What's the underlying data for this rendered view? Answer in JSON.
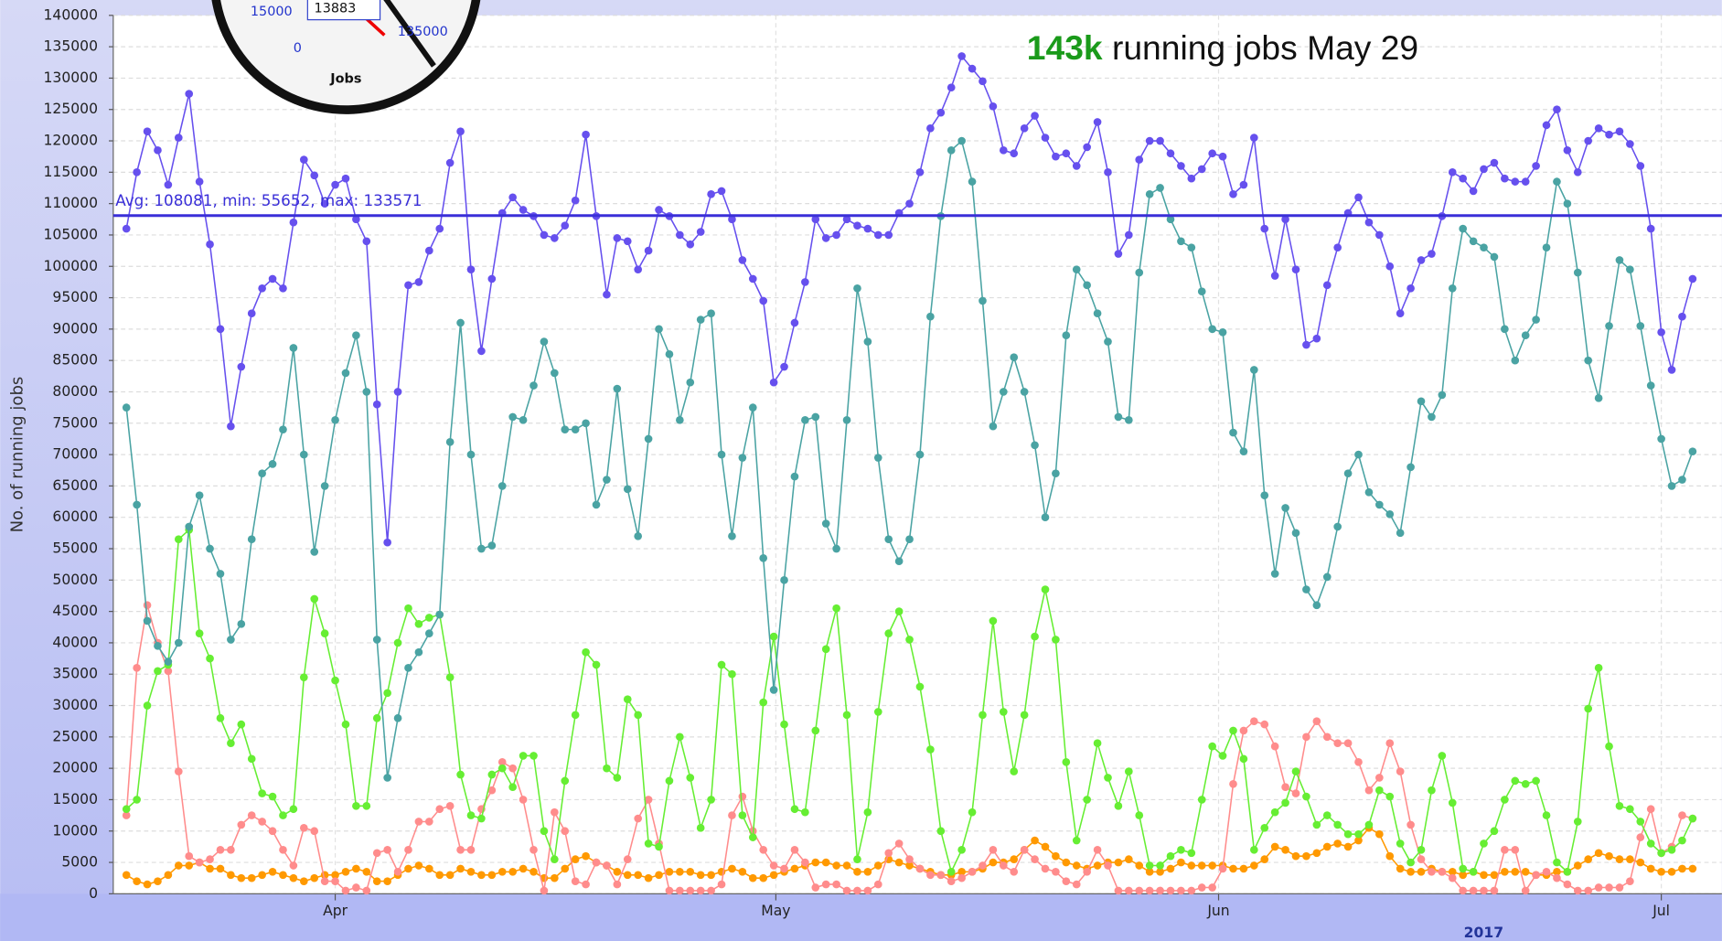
{
  "chart_data": {
    "type": "line",
    "y_label": "No. of running jobs",
    "annotation": {
      "highlight": "143k",
      "text": "running jobs May 29",
      "color": "#1a9a1a"
    },
    "avg": 108081,
    "avg_label": "Avg: 108081, min: 55652, max: 133571",
    "avg_color": "#3a2fd8",
    "year_label": "2017",
    "gauge": {
      "title": "Jobs",
      "value_label": "13883",
      "tick_labels": [
        "15000",
        "0",
        "135000"
      ]
    },
    "x": [
      0,
      1,
      2,
      3,
      4,
      5,
      6,
      7,
      8,
      9,
      10,
      11,
      12,
      13,
      14,
      15,
      16,
      17,
      18,
      19,
      20,
      21,
      22,
      23,
      24,
      25,
      26,
      27,
      28,
      29,
      30,
      31,
      32,
      33,
      34,
      35,
      36,
      37,
      38,
      39,
      40,
      41,
      42,
      43,
      44,
      45,
      46,
      47,
      48,
      49,
      50,
      51,
      52,
      53,
      54,
      55,
      56,
      57,
      58,
      59,
      60,
      61,
      62,
      63,
      64,
      65,
      66,
      67,
      68,
      69,
      70,
      71,
      72,
      73,
      74,
      75,
      76,
      77,
      78,
      79,
      80,
      81,
      82,
      83,
      84,
      85,
      86,
      87,
      88,
      89,
      90,
      91,
      92,
      93,
      94,
      95,
      96,
      97,
      98,
      99,
      100,
      101,
      102,
      103,
      104,
      105,
      106,
      107,
      108,
      109,
      110,
      111,
      112,
      113,
      114,
      115,
      116,
      117,
      118,
      119,
      120,
      121,
      122,
      123,
      124,
      125,
      126,
      127,
      128,
      129,
      130,
      131,
      132,
      133,
      134,
      135,
      136,
      137,
      138,
      139,
      140,
      141,
      142,
      143,
      144,
      145,
      146,
      147,
      148,
      149,
      150
    ],
    "xlim": [
      -1.26,
      152.8
    ],
    "xticks": [
      {
        "value": 20,
        "label": "Apr"
      },
      {
        "value": 62.2,
        "label": "May"
      },
      {
        "value": 104.6,
        "label": "Jun"
      },
      {
        "value": 147,
        "label": "Jul"
      }
    ],
    "ylim": [
      0,
      140000
    ],
    "yticks": [
      0,
      5000,
      10000,
      15000,
      20000,
      25000,
      30000,
      35000,
      40000,
      45000,
      50000,
      55000,
      60000,
      65000,
      70000,
      75000,
      80000,
      85000,
      90000,
      95000,
      100000,
      105000,
      110000,
      115000,
      120000,
      125000,
      130000,
      135000,
      140000
    ],
    "grid": true,
    "series": [
      {
        "color": "#6650ee",
        "values": [
          106000,
          115000,
          121500,
          118500,
          113000,
          120500,
          127500,
          113500,
          103500,
          90000,
          74500,
          84000,
          92500,
          96500,
          98000,
          96500,
          107000,
          117000,
          114500,
          110000,
          113000,
          114000,
          107500,
          104000,
          78000,
          56000,
          80000,
          97000,
          97500,
          102500,
          106000,
          116500,
          121500,
          99500,
          86500,
          98000,
          108500,
          111000,
          109000,
          108000,
          105000,
          104500,
          106500,
          110500,
          121000,
          108000,
          95500,
          104500,
          104000,
          99500,
          102500,
          109000,
          108000,
          105000,
          103500,
          105500,
          111500,
          112000,
          107500,
          101000,
          98000,
          94500,
          81500,
          84000,
          91000,
          97500,
          107500,
          104500,
          105000,
          107500,
          106500,
          106000,
          105000,
          105000,
          108500,
          110000,
          115000,
          122000,
          124500,
          128500,
          133500,
          131500,
          129500,
          125500,
          118500,
          118000,
          122000,
          124000,
          120500,
          117500,
          118000,
          116000,
          119000,
          123000,
          115000,
          102000,
          105000,
          117000,
          120000,
          120000,
          118000,
          116000,
          114000,
          115500,
          118000,
          117500,
          111500,
          113000,
          120500,
          106000,
          98500,
          107500,
          99500,
          87500,
          88500,
          97000,
          103000,
          108500,
          111000,
          107000,
          105000,
          100000,
          92500,
          96500,
          101000,
          102000,
          108000,
          115000,
          114000,
          112000,
          115500,
          116500,
          114000,
          113500,
          113500,
          116000,
          122500,
          125000,
          118500,
          115000,
          120000,
          122000,
          121000,
          121500,
          119500,
          116000,
          106000,
          89500,
          83500,
          92000,
          98000
        ]
      },
      {
        "color": "#4aa3a3",
        "values": [
          77500,
          62000,
          43500,
          39500,
          37000,
          40000,
          58500,
          63500,
          55000,
          51000,
          40500,
          43000,
          56500,
          67000,
          68500,
          74000,
          87000,
          70000,
          54500,
          65000,
          75500,
          83000,
          89000,
          80000,
          40500,
          18500,
          28000,
          36000,
          38500,
          41500,
          44500,
          72000,
          91000,
          70000,
          55000,
          55500,
          65000,
          76000,
          75500,
          81000,
          88000,
          83000,
          74000,
          74000,
          75000,
          62000,
          66000,
          80500,
          64500,
          57000,
          72500,
          90000,
          86000,
          75500,
          81500,
          91500,
          92500,
          70000,
          57000,
          69500,
          77500,
          53500,
          32500,
          50000,
          66500,
          75500,
          76000,
          59000,
          55000,
          75500,
          96500,
          88000,
          69500,
          56500,
          53000,
          56500,
          70000,
          92000,
          108000,
          118500,
          120000,
          113500,
          94500,
          74500,
          80000,
          85500,
          80000,
          71500,
          60000,
          67000,
          89000,
          99500,
          97000,
          92500,
          88000,
          76000,
          75500,
          99000,
          111500,
          112500,
          107500,
          104000,
          103000,
          96000,
          90000,
          89500,
          73500,
          70500,
          83500,
          63500,
          51000,
          61500,
          57500,
          48500,
          46000,
          50500,
          58500,
          67000,
          70000,
          64000,
          62000,
          60500,
          57500,
          68000,
          78500,
          76000,
          79500,
          96500,
          106000,
          104000,
          103000,
          101500,
          90000,
          85000,
          89000,
          91500,
          103000,
          113500,
          110000,
          99000,
          85000,
          79000,
          90500,
          101000,
          99500,
          90500,
          81000,
          72500,
          65000,
          66000,
          70500
        ]
      },
      {
        "color": "#66ee33",
        "values": [
          13500,
          15000,
          30000,
          35500,
          36500,
          56500,
          58000,
          41500,
          37500,
          28000,
          24000,
          27000,
          21500,
          16000,
          15500,
          12500,
          13500,
          34500,
          47000,
          41500,
          34000,
          27000,
          14000,
          14000,
          28000,
          32000,
          40000,
          45500,
          43000,
          44000,
          44500,
          34500,
          19000,
          12500,
          12000,
          19000,
          20000,
          17000,
          22000,
          22000,
          10000,
          5500,
          18000,
          28500,
          38500,
          36500,
          20000,
          18500,
          31000,
          28500,
          8000,
          7500,
          18000,
          25000,
          18500,
          10500,
          15000,
          36500,
          35000,
          12500,
          9000,
          30500,
          41000,
          27000,
          13500,
          13000,
          26000,
          39000,
          45500,
          28500,
          5500,
          13000,
          29000,
          41500,
          45000,
          40500,
          33000,
          23000,
          10000,
          3500,
          7000,
          13000,
          28500,
          43500,
          29000,
          19500,
          28500,
          41000,
          48500,
          40500,
          21000,
          8500,
          15000,
          24000,
          18500,
          14000,
          19500,
          12500,
          4500,
          4500,
          6000,
          7000,
          6500,
          15000,
          23500,
          22000,
          26000,
          21500,
          7000,
          10500,
          13000,
          14500,
          19500,
          15500,
          11000,
          12500,
          11000,
          9500,
          9500,
          11000,
          16500,
          15500,
          8000,
          5000,
          7000,
          16500,
          22000,
          14500,
          4000,
          3500,
          8000,
          10000,
          15000,
          18000,
          17500,
          18000,
          12500,
          5000,
          3500,
          11500,
          29500,
          36000,
          23500,
          14000,
          13500,
          11500,
          8000,
          6500,
          7000,
          8500,
          12000
        ]
      },
      {
        "color": "#ff8c8c",
        "values": [
          12500,
          36000,
          46000,
          40000,
          35500,
          19500,
          6000,
          5000,
          5500,
          7000,
          7000,
          11000,
          12500,
          11500,
          10000,
          7000,
          4500,
          10500,
          10000,
          2000,
          2000,
          500,
          1000,
          500,
          6500,
          7000,
          3500,
          7000,
          11500,
          11500,
          13500,
          14000,
          7000,
          7000,
          13500,
          16500,
          21000,
          20000,
          15000,
          7000,
          500,
          13000,
          10000,
          2000,
          1500,
          5000,
          4500,
          1500,
          5500,
          12000,
          15000,
          8000,
          500,
          500,
          500,
          500,
          500,
          1500,
          12500,
          15500,
          10000,
          7000,
          4500,
          4000,
          7000,
          5000,
          1000,
          1500,
          1500,
          500,
          500,
          500,
          1500,
          6500,
          8000,
          5500,
          4000,
          3000,
          3000,
          2000,
          2500,
          3500,
          4500,
          7000,
          4500,
          3500,
          7000,
          5500,
          4000,
          3500,
          2000,
          1500,
          3500,
          7000,
          4500,
          500,
          500,
          500,
          500,
          500,
          500,
          500,
          500,
          1000,
          1000,
          4000,
          17500,
          26000,
          27500,
          27000,
          23500,
          17000,
          16000,
          25000,
          27500,
          25000,
          24000,
          24000,
          21000,
          16500,
          18500,
          24000,
          19500,
          11000,
          5500,
          3500,
          3500,
          2500,
          500,
          500,
          500,
          500,
          7000,
          7000,
          500,
          3000,
          3500,
          2500,
          1500,
          500,
          500,
          1000,
          1000,
          1000,
          2000,
          9000,
          13500,
          6500,
          7500,
          12500,
          12000
        ]
      },
      {
        "color": "#ff9900",
        "values": [
          3000,
          2000,
          1500,
          2000,
          3000,
          4500,
          4500,
          5000,
          4000,
          4000,
          3000,
          2500,
          2500,
          3000,
          3500,
          3000,
          2500,
          2000,
          2500,
          3000,
          3000,
          3500,
          4000,
          3500,
          2000,
          2000,
          3000,
          4000,
          4500,
          4000,
          3000,
          3000,
          4000,
          3500,
          3000,
          3000,
          3500,
          3500,
          4000,
          3500,
          2500,
          2500,
          4000,
          5500,
          6000,
          5000,
          4500,
          3500,
          3000,
          3000,
          2500,
          3000,
          3500,
          3500,
          3500,
          3000,
          3000,
          3500,
          4000,
          3500,
          2500,
          2500,
          3000,
          3500,
          4000,
          4500,
          5000,
          5000,
          4500,
          4500,
          3500,
          3500,
          4500,
          5500,
          5000,
          4500,
          4000,
          3500,
          3000,
          3000,
          3500,
          3500,
          4000,
          5000,
          5000,
          5500,
          7000,
          8500,
          7500,
          6000,
          5000,
          4500,
          4000,
          4500,
          5000,
          5000,
          5500,
          4500,
          3500,
          3500,
          4000,
          5000,
          4500,
          4500,
          4500,
          4500,
          4000,
          4000,
          4500,
          5500,
          7500,
          7000,
          6000,
          6000,
          6500,
          7500,
          8000,
          7500,
          8500,
          10500,
          9500,
          6000,
          4000,
          3500,
          3500,
          4000,
          3500,
          3500,
          3000,
          3500,
          3000,
          3000,
          3500,
          3500,
          3500,
          3000,
          3000,
          3500,
          3500,
          4500,
          5500,
          6500,
          6000,
          5500,
          5500,
          5000,
          4000,
          3500,
          3500,
          4000,
          4000
        ]
      }
    ]
  }
}
